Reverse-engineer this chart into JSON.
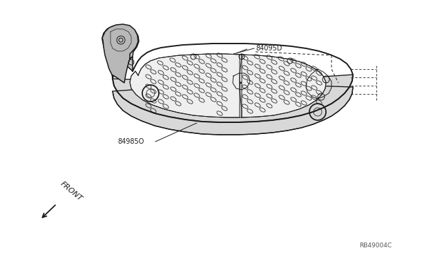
{
  "bg_color": "#ffffff",
  "part_label_1": "84095D",
  "part_label_2": "84985O",
  "front_label": "FRONT",
  "diagram_id": "RB49004C",
  "line_color": "#1a1a1a",
  "text_color": "#1a1a1a",
  "lw_outer": 1.4,
  "lw_inner": 0.7,
  "lw_detail": 0.45
}
